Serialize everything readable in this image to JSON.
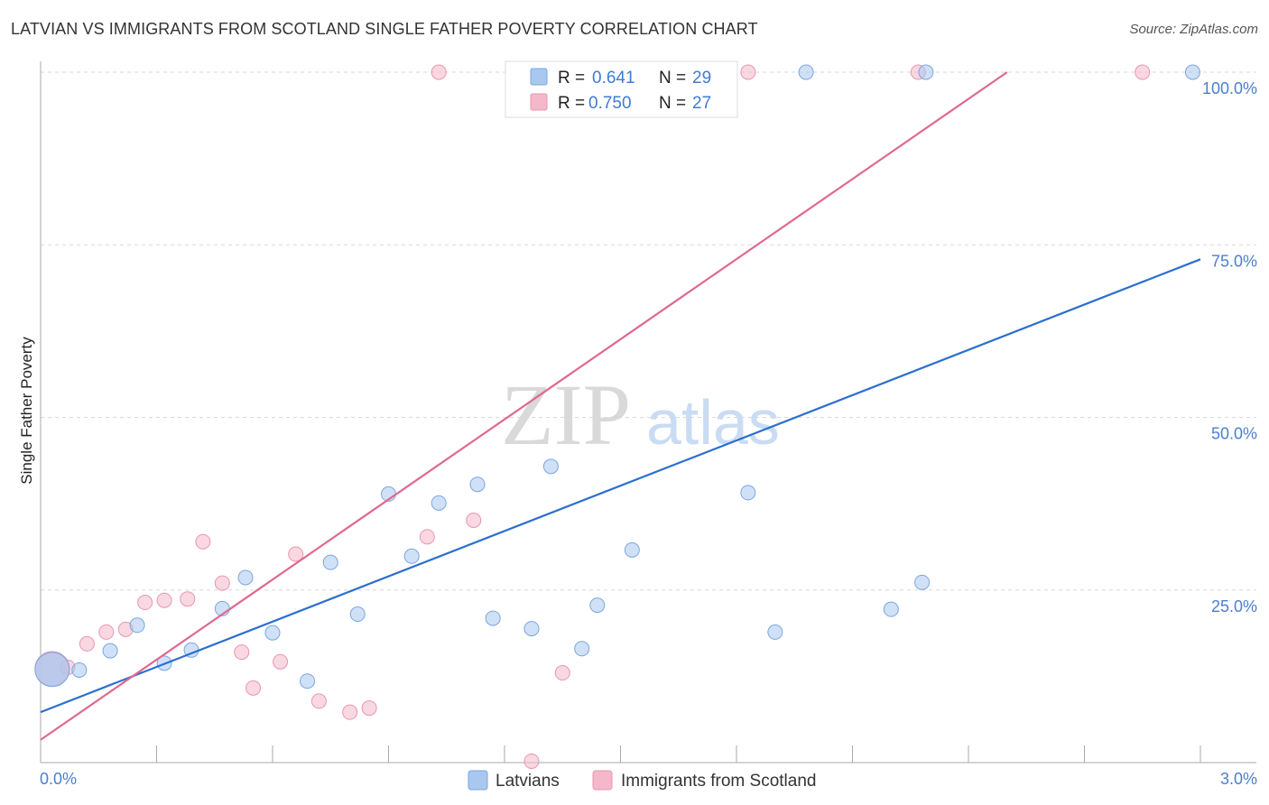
{
  "title": "LATVIAN VS IMMIGRANTS FROM SCOTLAND SINGLE FATHER POVERTY CORRELATION CHART",
  "source": "Source: ZipAtlas.com",
  "watermark": {
    "zip": "ZIP",
    "atlas": "atlas"
  },
  "colors": {
    "latvians_fill": "#a9c8f0",
    "latvians_stroke": "#7aa6dd",
    "latvians_line": "#2a6fce",
    "scotland_fill": "#f5b8cb",
    "scotland_stroke": "#e896b0",
    "scotland_line": "#e06890",
    "tick_text": "#4a7fd0",
    "grid": "#d8d8d8"
  },
  "legend": {
    "rows": [
      {
        "r_label": "R = ",
        "r_value": "0.641",
        "n_label": "N = ",
        "n_value": "29"
      },
      {
        "r_label": "R = ",
        "r_value": "0.750",
        "n_label": "N = ",
        "n_value": "27"
      }
    ]
  },
  "chart_data": {
    "type": "scatter",
    "title": "LATVIAN VS IMMIGRANTS FROM SCOTLAND SINGLE FATHER POVERTY CORRELATION CHART",
    "xlabel": "",
    "ylabel": "Single Father Poverty",
    "xlim": [
      0,
      3.0
    ],
    "ylim": [
      0,
      100
    ],
    "x_tick_labels": [
      "0.0%",
      "3.0%"
    ],
    "y_tick_labels": [
      "100.0%",
      "75.0%",
      "50.0%",
      "25.0%"
    ],
    "y_ticks": [
      100,
      75,
      50,
      25
    ],
    "grid": true,
    "legend_position": "top-center",
    "series": [
      {
        "name": "Latvians",
        "r": 0.641,
        "n": 29,
        "trend": {
          "x": [
            0,
            3.0
          ],
          "y": [
            7.3,
            72.9
          ]
        },
        "points": [
          {
            "x": 0.03,
            "y": 13.5,
            "big": true
          },
          {
            "x": 0.1,
            "y": 13.4
          },
          {
            "x": 0.18,
            "y": 16.2
          },
          {
            "x": 0.25,
            "y": 19.9
          },
          {
            "x": 0.32,
            "y": 14.4
          },
          {
            "x": 0.39,
            "y": 16.3
          },
          {
            "x": 0.47,
            "y": 22.3
          },
          {
            "x": 0.53,
            "y": 26.8
          },
          {
            "x": 0.6,
            "y": 18.8
          },
          {
            "x": 0.69,
            "y": 11.8
          },
          {
            "x": 0.75,
            "y": 29.0
          },
          {
            "x": 0.82,
            "y": 21.5
          },
          {
            "x": 0.9,
            "y": 38.9
          },
          {
            "x": 0.96,
            "y": 29.9
          },
          {
            "x": 1.03,
            "y": 37.6
          },
          {
            "x": 1.13,
            "y": 40.3
          },
          {
            "x": 1.17,
            "y": 20.9
          },
          {
            "x": 1.27,
            "y": 19.4
          },
          {
            "x": 1.32,
            "y": 42.9
          },
          {
            "x": 1.4,
            "y": 16.5
          },
          {
            "x": 1.44,
            "y": 22.8
          },
          {
            "x": 1.53,
            "y": 30.8
          },
          {
            "x": 1.83,
            "y": 39.1
          },
          {
            "x": 1.9,
            "y": 18.9
          },
          {
            "x": 1.98,
            "y": 100.0
          },
          {
            "x": 2.2,
            "y": 22.2
          },
          {
            "x": 2.28,
            "y": 26.1
          },
          {
            "x": 2.29,
            "y": 100.0
          },
          {
            "x": 2.98,
            "y": 100.0
          }
        ]
      },
      {
        "name": "Immigrants from Scotland",
        "r": 0.75,
        "n": 27,
        "trend": {
          "x": [
            0,
            2.5
          ],
          "y": [
            3.3,
            100.0
          ]
        },
        "points": [
          {
            "x": 0.03,
            "y": 13.6,
            "big": true
          },
          {
            "x": 0.07,
            "y": 13.8
          },
          {
            "x": 0.12,
            "y": 17.2
          },
          {
            "x": 0.17,
            "y": 18.9
          },
          {
            "x": 0.22,
            "y": 19.3
          },
          {
            "x": 0.27,
            "y": 23.2
          },
          {
            "x": 0.32,
            "y": 23.5
          },
          {
            "x": 0.38,
            "y": 23.7
          },
          {
            "x": 0.42,
            "y": 32.0
          },
          {
            "x": 0.47,
            "y": 26.0
          },
          {
            "x": 0.52,
            "y": 16.0
          },
          {
            "x": 0.55,
            "y": 10.8
          },
          {
            "x": 0.62,
            "y": 14.6
          },
          {
            "x": 0.66,
            "y": 30.2
          },
          {
            "x": 0.72,
            "y": 8.9
          },
          {
            "x": 0.8,
            "y": 7.3
          },
          {
            "x": 0.85,
            "y": 7.9
          },
          {
            "x": 1.0,
            "y": 32.7
          },
          {
            "x": 1.03,
            "y": 100.0
          },
          {
            "x": 1.12,
            "y": 35.1
          },
          {
            "x": 1.27,
            "y": 0.2
          },
          {
            "x": 1.35,
            "y": 13.0
          },
          {
            "x": 1.67,
            "y": 100.0
          },
          {
            "x": 1.75,
            "y": 100.0
          },
          {
            "x": 1.83,
            "y": 100.0
          },
          {
            "x": 2.27,
            "y": 100.0
          },
          {
            "x": 2.85,
            "y": 100.0
          }
        ]
      }
    ]
  }
}
